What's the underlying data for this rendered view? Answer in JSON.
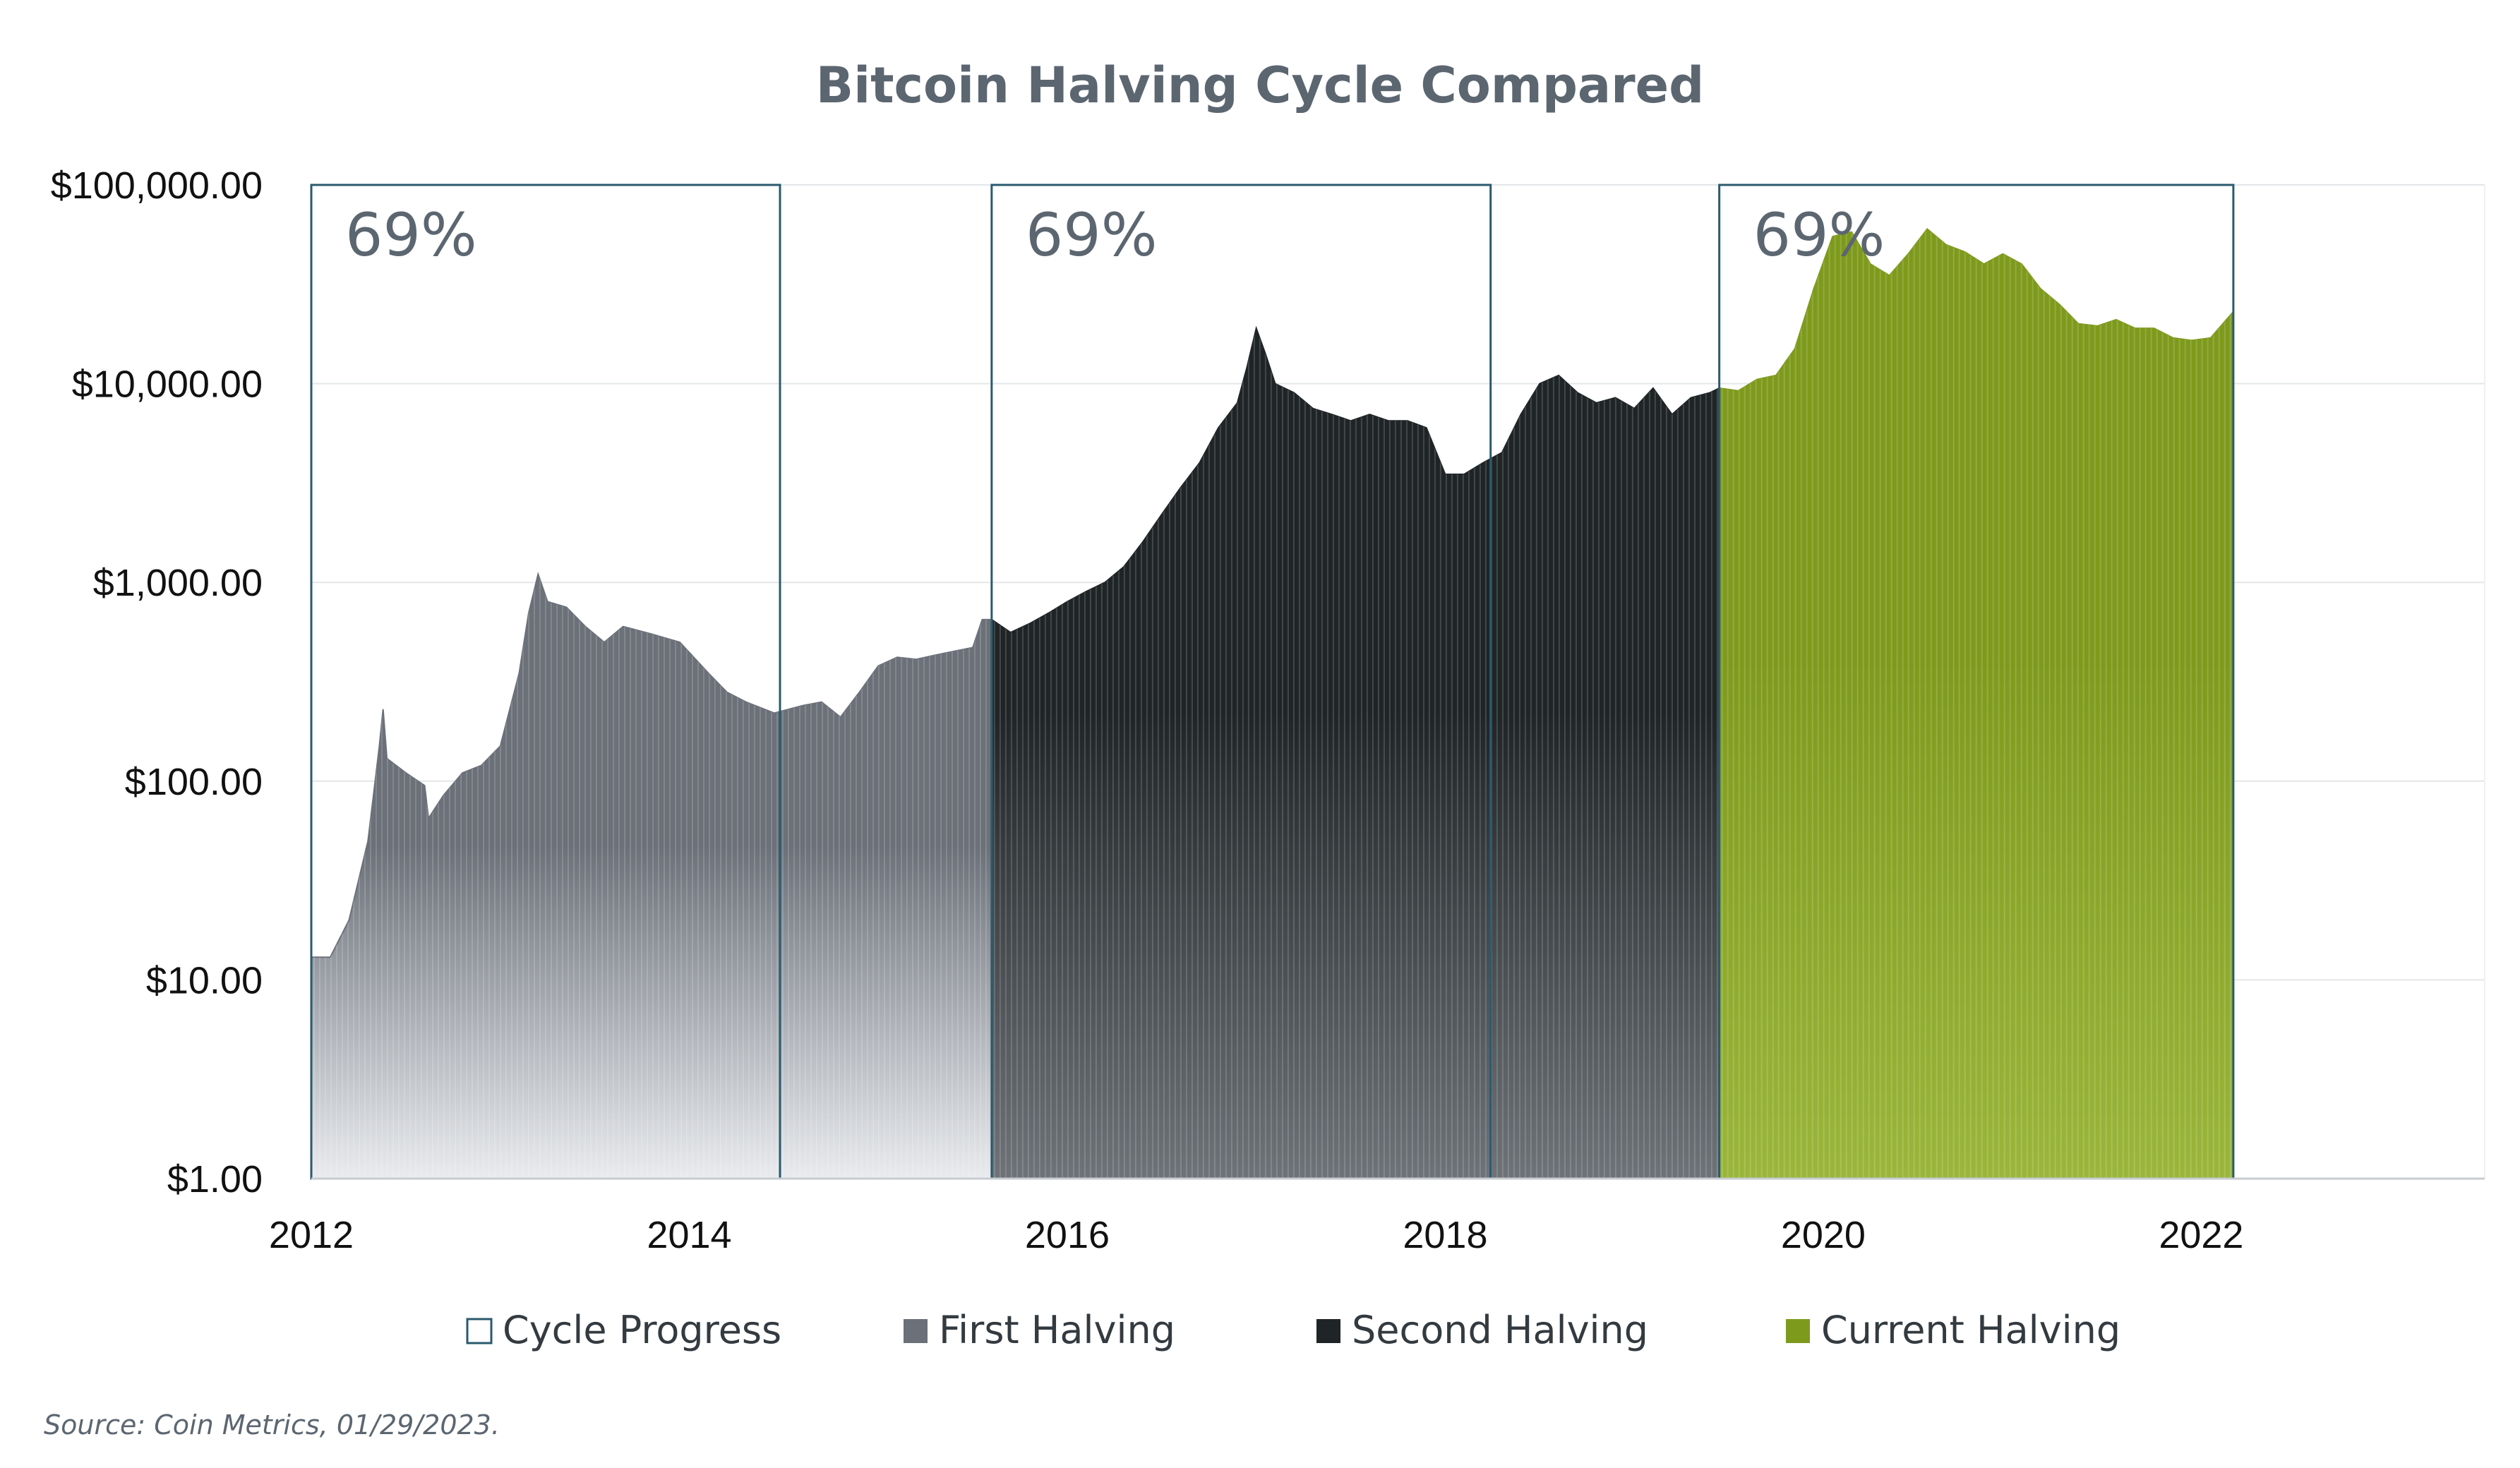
{
  "chart_data": {
    "type": "area",
    "title": "Bitcoin Halving Cycle Compared",
    "source": "Source: Coin Metrics, 01/29/2023.",
    "y_scale": "log",
    "ylim": [
      1,
      100000
    ],
    "xlim": [
      2012,
      2023.5
    ],
    "y_ticks": [
      {
        "value": 1,
        "label": "$1.00"
      },
      {
        "value": 10,
        "label": "$10.00"
      },
      {
        "value": 100,
        "label": "$100.00"
      },
      {
        "value": 1000,
        "label": "$1,000.00"
      },
      {
        "value": 10000,
        "label": "$10,000.00"
      },
      {
        "value": 100000,
        "label": "$100,000.00"
      }
    ],
    "x_ticks": [
      {
        "value": 2012,
        "label": "2012"
      },
      {
        "value": 2014,
        "label": "2014"
      },
      {
        "value": 2016,
        "label": "2016"
      },
      {
        "value": 2018,
        "label": "2018"
      },
      {
        "value": 2020,
        "label": "2020"
      },
      {
        "value": 2022,
        "label": "2022"
      }
    ],
    "cycle_boxes": [
      {
        "start": 2012.0,
        "end": 2014.48,
        "label": "69%"
      },
      {
        "start": 2015.6,
        "end": 2018.24,
        "label": "69%"
      },
      {
        "start": 2019.45,
        "end": 2022.17,
        "label": "69%"
      }
    ],
    "legend": [
      {
        "name": "Cycle Progress",
        "color": "#ffffff",
        "stroke": "#2b5a6e"
      },
      {
        "name": "First Halving",
        "color": "#6b7079"
      },
      {
        "name": "Second Halving",
        "color": "#1f2426"
      },
      {
        "name": "Current Halving",
        "color": "#7e9a1c"
      }
    ],
    "series": [
      {
        "name": "First Halving",
        "color": "#6b7079",
        "points": [
          [
            2012.0,
            13
          ],
          [
            2012.1,
            13
          ],
          [
            2012.2,
            20
          ],
          [
            2012.3,
            50
          ],
          [
            2012.36,
            150
          ],
          [
            2012.38,
            230
          ],
          [
            2012.4,
            130
          ],
          [
            2012.5,
            110
          ],
          [
            2012.6,
            95
          ],
          [
            2012.62,
            65
          ],
          [
            2012.7,
            85
          ],
          [
            2012.8,
            110
          ],
          [
            2012.9,
            120
          ],
          [
            2013.0,
            150
          ],
          [
            2013.1,
            350
          ],
          [
            2013.15,
            700
          ],
          [
            2013.2,
            1100
          ],
          [
            2013.25,
            800
          ],
          [
            2013.35,
            750
          ],
          [
            2013.45,
            600
          ],
          [
            2013.55,
            500
          ],
          [
            2013.65,
            600
          ],
          [
            2013.8,
            550
          ],
          [
            2013.95,
            500
          ],
          [
            2014.1,
            350
          ],
          [
            2014.2,
            280
          ],
          [
            2014.3,
            250
          ],
          [
            2014.45,
            220
          ],
          [
            2014.6,
            240
          ],
          [
            2014.7,
            250
          ],
          [
            2014.8,
            210
          ],
          [
            2014.9,
            280
          ],
          [
            2015.0,
            380
          ],
          [
            2015.1,
            420
          ],
          [
            2015.2,
            410
          ],
          [
            2015.3,
            430
          ],
          [
            2015.4,
            450
          ],
          [
            2015.5,
            470
          ],
          [
            2015.55,
            650
          ],
          [
            2015.6,
            650
          ]
        ]
      },
      {
        "name": "Second Halving",
        "color": "#1f2426",
        "points": [
          [
            2015.6,
            650
          ],
          [
            2015.7,
            560
          ],
          [
            2015.8,
            620
          ],
          [
            2015.9,
            700
          ],
          [
            2016.0,
            800
          ],
          [
            2016.1,
            900
          ],
          [
            2016.2,
            1000
          ],
          [
            2016.3,
            1200
          ],
          [
            2016.4,
            1600
          ],
          [
            2016.5,
            2200
          ],
          [
            2016.6,
            3000
          ],
          [
            2016.7,
            4000
          ],
          [
            2016.8,
            6000
          ],
          [
            2016.9,
            8000
          ],
          [
            2016.95,
            12000
          ],
          [
            2017.0,
            19000
          ],
          [
            2017.05,
            14000
          ],
          [
            2017.1,
            10000
          ],
          [
            2017.2,
            9000
          ],
          [
            2017.3,
            7500
          ],
          [
            2017.4,
            7000
          ],
          [
            2017.5,
            6500
          ],
          [
            2017.6,
            7000
          ],
          [
            2017.7,
            6500
          ],
          [
            2017.8,
            6500
          ],
          [
            2017.9,
            6000
          ],
          [
            2018.0,
            3500
          ],
          [
            2018.1,
            3500
          ],
          [
            2018.2,
            4000
          ],
          [
            2018.3,
            4500
          ],
          [
            2018.4,
            7000
          ],
          [
            2018.5,
            10000
          ],
          [
            2018.6,
            11000
          ],
          [
            2018.7,
            9000
          ],
          [
            2018.8,
            8000
          ],
          [
            2018.9,
            8500
          ],
          [
            2019.0,
            7500
          ],
          [
            2019.1,
            9500
          ],
          [
            2019.2,
            7000
          ],
          [
            2019.3,
            8500
          ],
          [
            2019.4,
            9000
          ],
          [
            2019.45,
            9500
          ]
        ]
      },
      {
        "name": "Current Halving",
        "color": "#7e9a1c",
        "points": [
          [
            2019.45,
            9500
          ],
          [
            2019.55,
            9200
          ],
          [
            2019.65,
            10500
          ],
          [
            2019.75,
            11000
          ],
          [
            2019.85,
            15000
          ],
          [
            2019.95,
            30000
          ],
          [
            2020.05,
            55000
          ],
          [
            2020.15,
            58000
          ],
          [
            2020.25,
            40000
          ],
          [
            2020.35,
            35000
          ],
          [
            2020.45,
            45000
          ],
          [
            2020.55,
            60000
          ],
          [
            2020.65,
            50000
          ],
          [
            2020.75,
            46000
          ],
          [
            2020.85,
            40000
          ],
          [
            2020.95,
            45000
          ],
          [
            2021.05,
            40000
          ],
          [
            2021.15,
            30000
          ],
          [
            2021.25,
            25000
          ],
          [
            2021.35,
            20000
          ],
          [
            2021.45,
            19500
          ],
          [
            2021.55,
            21000
          ],
          [
            2021.65,
            19000
          ],
          [
            2021.75,
            19000
          ],
          [
            2021.85,
            17000
          ],
          [
            2021.95,
            16500
          ],
          [
            2022.05,
            17000
          ],
          [
            2022.17,
            23000
          ]
        ]
      }
    ]
  }
}
